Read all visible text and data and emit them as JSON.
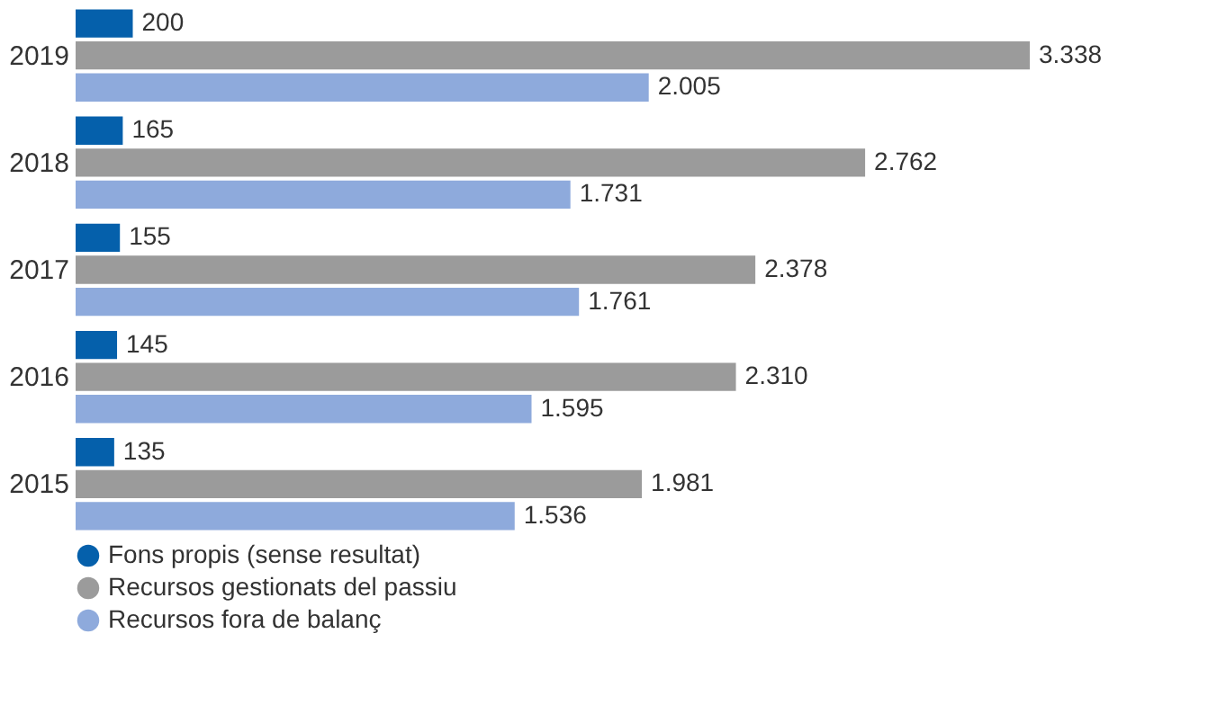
{
  "chart_data": {
    "type": "bar",
    "orientation": "horizontal",
    "categories": [
      "2019",
      "2018",
      "2017",
      "2016",
      "2015"
    ],
    "series": [
      {
        "name": "Fons propis (sense resultat)",
        "color": "#0560ab",
        "values": [
          200,
          165,
          155,
          145,
          135
        ],
        "value_labels": [
          "200",
          "165",
          "155",
          "145",
          "135"
        ]
      },
      {
        "name": "Recursos gestionats del passiu",
        "color": "#9b9b9b",
        "values": [
          3338,
          2762,
          2378,
          2310,
          1981
        ],
        "value_labels": [
          "3.338",
          "2.762",
          "2.378",
          "2.310",
          "1.981"
        ]
      },
      {
        "name": "Recursos fora de balanç",
        "color": "#8eaadc",
        "values": [
          2005,
          1731,
          1761,
          1595,
          1536
        ],
        "value_labels": [
          "2.005",
          "1.731",
          "1.761",
          "1.595",
          "1.536"
        ]
      }
    ],
    "legend": "bottom left"
  }
}
